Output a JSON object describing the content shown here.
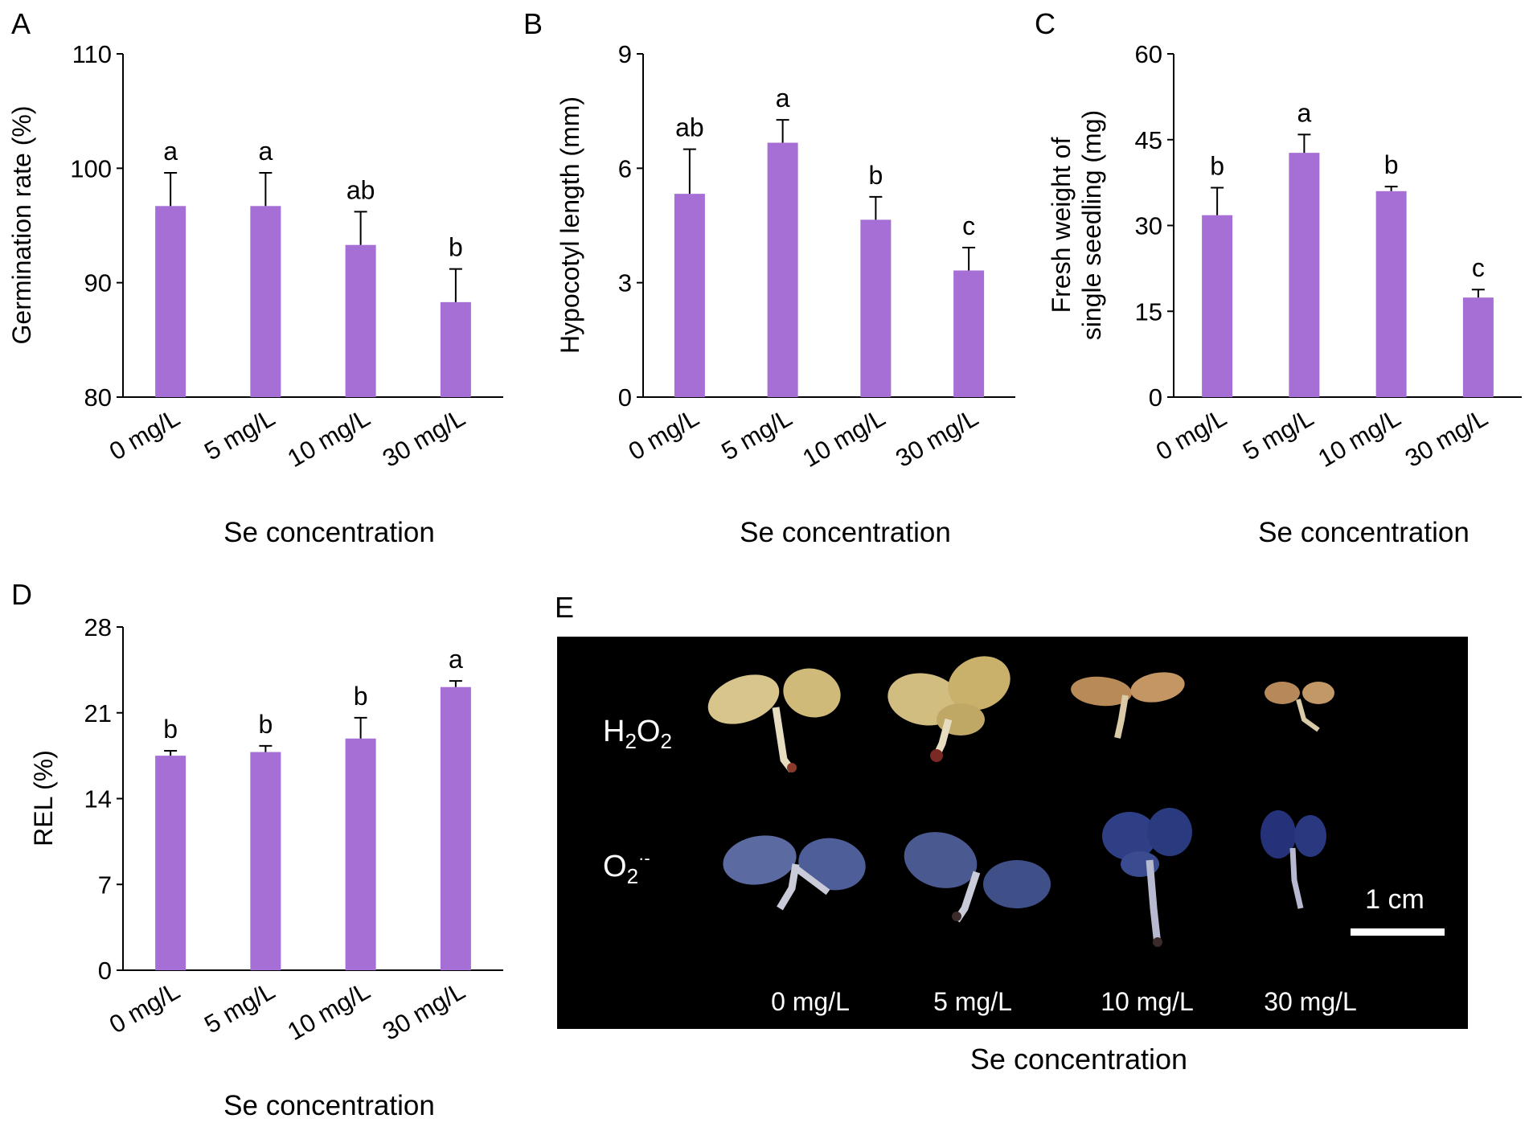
{
  "colors": {
    "bar": "#a56fd6",
    "axis": "#000000",
    "photo_bg": "#000000",
    "photo_text": "#ffffff"
  },
  "chart_data": [
    {
      "panel": "A",
      "type": "bar",
      "categories": [
        "0 mg/L",
        "5 mg/L",
        "10 mg/L",
        "30 mg/L"
      ],
      "values": [
        96.7,
        96.7,
        93.3,
        88.3
      ],
      "errors": [
        2.9,
        2.9,
        2.9,
        2.9
      ],
      "letters": [
        "a",
        "a",
        "ab",
        "b"
      ],
      "ylabel": [
        "Germination rate (%)"
      ],
      "xlabel": "Se concentration",
      "ylim": [
        80,
        110
      ],
      "yticks": [
        80,
        90,
        100,
        110
      ]
    },
    {
      "panel": "B",
      "type": "bar",
      "categories": [
        "0 mg/L",
        "5 mg/L",
        "10 mg/L",
        "30 mg/L"
      ],
      "values": [
        5.33,
        6.67,
        4.65,
        3.32
      ],
      "errors": [
        1.17,
        0.6,
        0.6,
        0.6
      ],
      "letters": [
        "ab",
        "a",
        "b",
        "c"
      ],
      "ylabel": [
        "Hypocotyl length (mm)"
      ],
      "xlabel": "Se concentration",
      "ylim": [
        0,
        9
      ],
      "yticks": [
        0,
        3,
        6,
        9
      ]
    },
    {
      "panel": "C",
      "type": "bar",
      "categories": [
        "0 mg/L",
        "5 mg/L",
        "10 mg/L",
        "30 mg/L"
      ],
      "values": [
        31.8,
        42.7,
        36.0,
        17.4
      ],
      "errors": [
        4.8,
        3.2,
        0.8,
        1.4
      ],
      "letters": [
        "b",
        "a",
        "b",
        "c"
      ],
      "ylabel": [
        "Fresh weight of",
        "single seedling (mg)"
      ],
      "xlabel": "Se concentration",
      "ylim": [
        0,
        60
      ],
      "yticks": [
        0,
        15,
        30,
        45,
        60
      ]
    },
    {
      "panel": "D",
      "type": "bar",
      "categories": [
        "0 mg/L",
        "5 mg/L",
        "10 mg/L",
        "30 mg/L"
      ],
      "values": [
        17.5,
        17.8,
        18.9,
        23.1
      ],
      "errors": [
        0.4,
        0.5,
        1.7,
        0.5
      ],
      "letters": [
        "b",
        "b",
        "b",
        "a"
      ],
      "ylabel": [
        "REL (%)"
      ],
      "xlabel": "Se concentration",
      "ylim": [
        0,
        28
      ],
      "yticks": [
        0,
        7,
        14,
        21,
        28
      ]
    }
  ],
  "panel_e": {
    "label": "E",
    "row1": {
      "main": "H",
      "sub1": "2",
      "mid": "O",
      "sub2": "2"
    },
    "row2": {
      "main": "O",
      "sub": "2",
      "sup": "·-"
    },
    "scale_label": "1 cm",
    "columns": [
      "0 mg/L",
      "5 mg/L",
      "10 mg/L",
      "30 mg/L"
    ],
    "xlabel": "Se concentration"
  }
}
